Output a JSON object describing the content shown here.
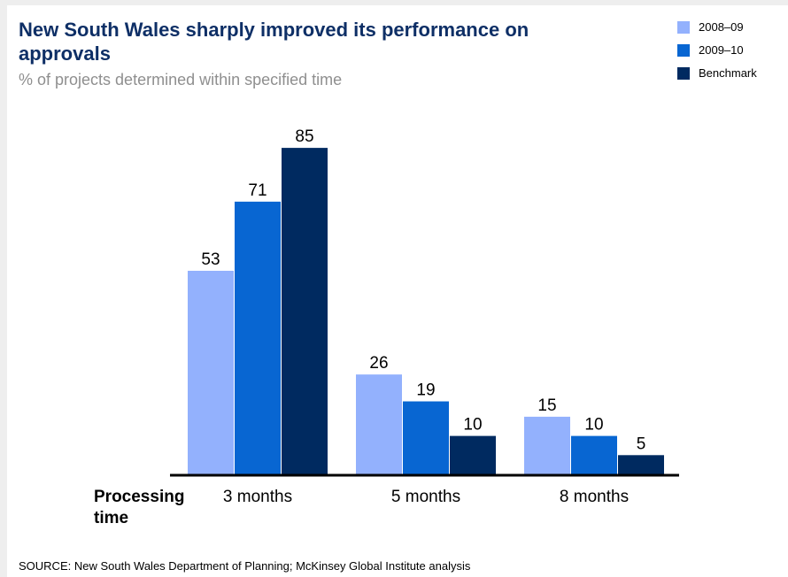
{
  "chart_data": {
    "type": "bar",
    "title": "New South Wales sharply improved its performance on approvals",
    "subtitle": "% of projects determined within specified time",
    "xlabel": "Processing time",
    "ylabel": "",
    "categories": [
      "3 months",
      "5 months",
      "8 months"
    ],
    "series": [
      {
        "name": "2008–09",
        "color": "#93b1fd",
        "values": [
          53,
          26,
          15
        ]
      },
      {
        "name": "2009–10",
        "color": "#0866d2",
        "values": [
          71,
          19,
          10
        ]
      },
      {
        "name": "Benchmark",
        "color": "#002a60",
        "values": [
          85,
          10,
          5
        ]
      }
    ],
    "ylim": [
      0,
      100
    ],
    "grid": false,
    "legend": "top-right",
    "source": "SOURCE: New South Wales Department of Planning; McKinsey Global Institute analysis"
  }
}
